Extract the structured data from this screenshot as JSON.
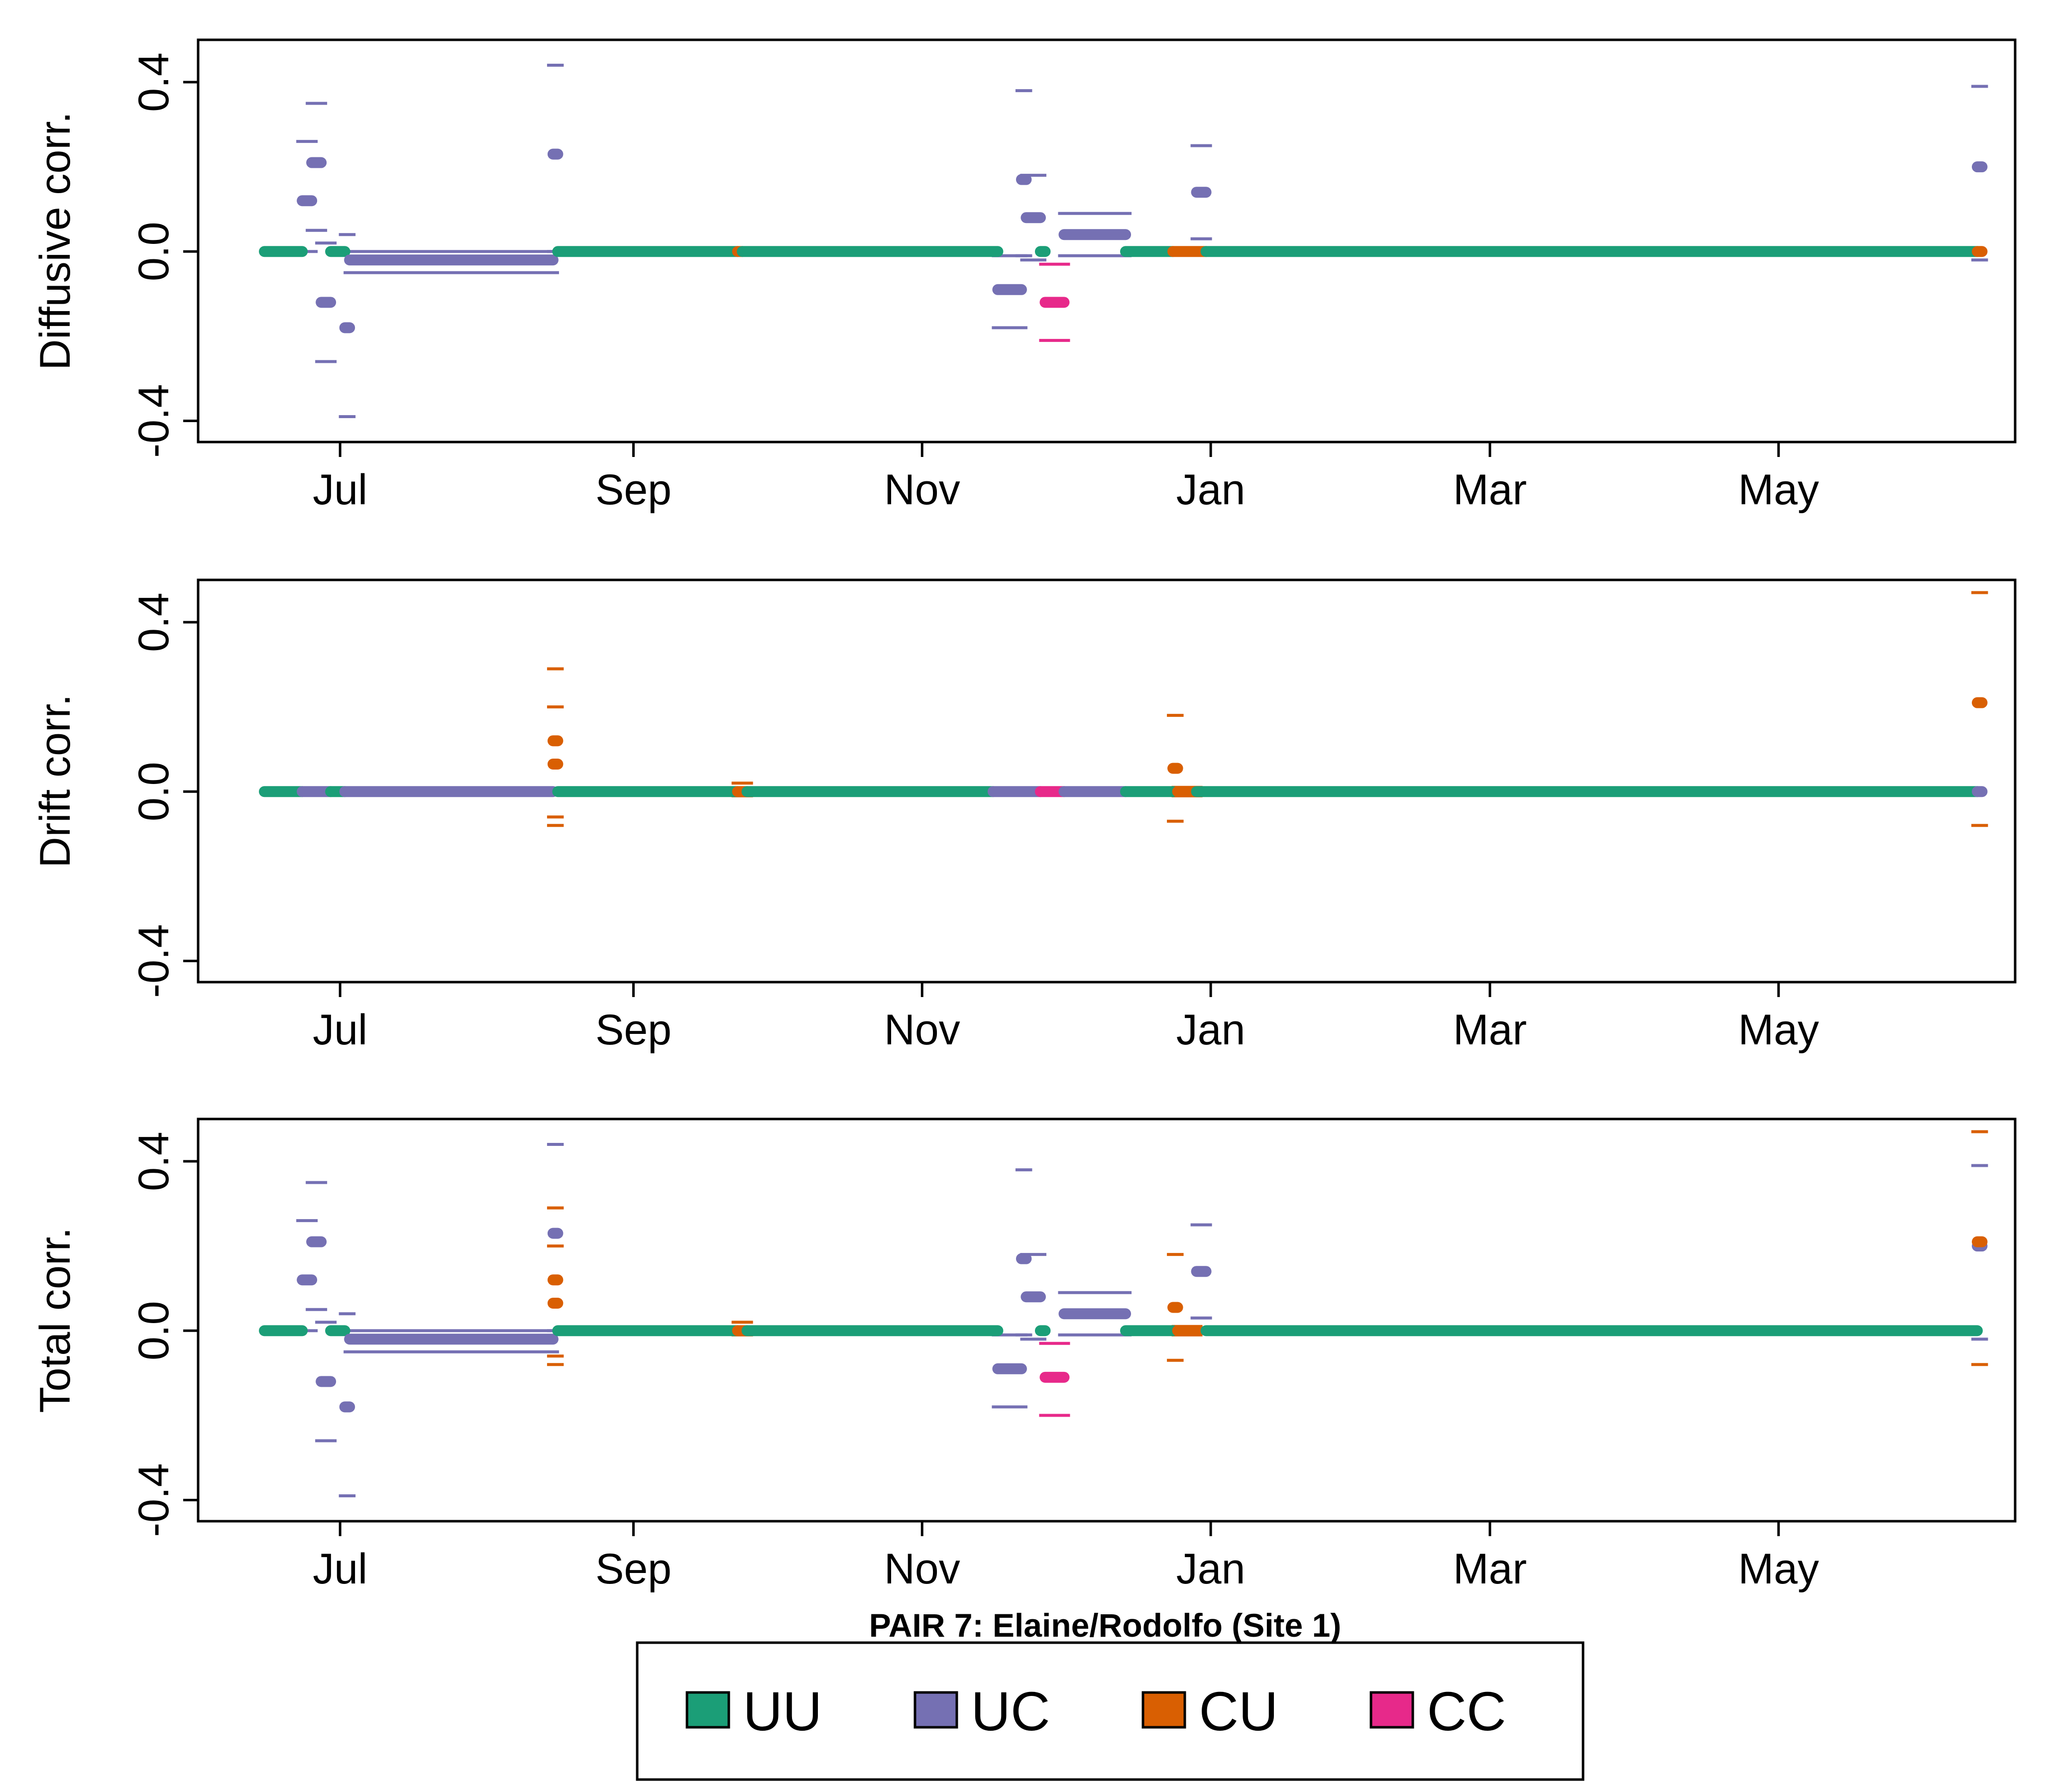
{
  "caption": "PAIR 7: Elaine/Rodolfo (Site 1)",
  "colors": {
    "UU": "#1b9e77",
    "UC": "#7570b3",
    "CU": "#d95f02",
    "CC": "#e7298a"
  },
  "legend": {
    "items": [
      {
        "key": "UU",
        "label": "UU"
      },
      {
        "key": "UC",
        "label": "UC"
      },
      {
        "key": "CU",
        "label": "CU"
      },
      {
        "key": "CC",
        "label": "CC"
      }
    ]
  },
  "chart_data": [
    {
      "type": "scatter",
      "ylabel": "Diffusive corr.",
      "ylim": [
        -0.45,
        0.5
      ],
      "yticks": [
        -0.4,
        0.0,
        0.4
      ],
      "ytick_labels": [
        "-0.4",
        "0.0",
        "0.4"
      ],
      "xlim": [
        "2017-06-01",
        "2018-06-20"
      ],
      "xticks": [
        "2017-07-01",
        "2017-09-01",
        "2017-11-01",
        "2018-01-01",
        "2018-03-01",
        "2018-05-01"
      ],
      "xtick_labels": [
        "Jul",
        "Sep",
        "Nov",
        "Jan",
        "Mar",
        "May"
      ],
      "grid": false,
      "segments": [
        {
          "series": "UU",
          "start": "2017-06-15",
          "end": "2017-06-23",
          "y": 0.0
        },
        {
          "series": "UC",
          "start": "2017-06-23",
          "end": "2017-06-25",
          "y": 0.12,
          "lo": 0.0,
          "hi": 0.26
        },
        {
          "series": "UC",
          "start": "2017-06-25",
          "end": "2017-06-27",
          "y": 0.21,
          "lo": 0.05,
          "hi": 0.35
        },
        {
          "series": "UC",
          "start": "2017-06-27",
          "end": "2017-06-29",
          "y": -0.12,
          "lo": -0.26,
          "hi": 0.02
        },
        {
          "series": "UU",
          "start": "2017-06-29",
          "end": "2017-07-02",
          "y": 0.0
        },
        {
          "series": "UC",
          "start": "2017-07-02",
          "end": "2017-07-03",
          "y": -0.18,
          "lo": -0.39,
          "hi": 0.04
        },
        {
          "series": "UC",
          "start": "2017-07-03",
          "end": "2017-08-15",
          "y": -0.02,
          "lo": -0.05,
          "hi": 0.0
        },
        {
          "series": "UC",
          "start": "2017-08-15",
          "end": "2017-08-16",
          "y": 0.23,
          "lo": 0.0,
          "hi": 0.44
        },
        {
          "series": "UU",
          "start": "2017-08-16",
          "end": "2017-09-23",
          "y": 0.0
        },
        {
          "series": "CU",
          "start": "2017-09-23",
          "end": "2017-09-24",
          "y": 0.0
        },
        {
          "series": "UU",
          "start": "2017-09-24",
          "end": "2017-11-17",
          "y": 0.0
        },
        {
          "series": "UC",
          "start": "2017-11-17",
          "end": "2017-11-22",
          "y": -0.09,
          "lo": -0.18,
          "hi": -0.01
        },
        {
          "series": "UC",
          "start": "2017-11-22",
          "end": "2017-11-23",
          "y": 0.17,
          "lo": -0.01,
          "hi": 0.38
        },
        {
          "series": "UC",
          "start": "2017-11-23",
          "end": "2017-11-26",
          "y": 0.08,
          "lo": -0.02,
          "hi": 0.18
        },
        {
          "series": "UU",
          "start": "2017-11-26",
          "end": "2017-11-27",
          "y": 0.0
        },
        {
          "series": "CC",
          "start": "2017-11-27",
          "end": "2017-12-01",
          "y": -0.12,
          "lo": -0.21,
          "hi": -0.03
        },
        {
          "series": "UC",
          "start": "2017-12-01",
          "end": "2017-12-14",
          "y": 0.04,
          "lo": -0.01,
          "hi": 0.09
        },
        {
          "series": "UU",
          "start": "2017-12-14",
          "end": "2017-12-24",
          "y": 0.0
        },
        {
          "series": "CU",
          "start": "2017-12-24",
          "end": "2017-12-31",
          "y": 0.0
        },
        {
          "series": "UC",
          "start": "2017-12-29",
          "end": "2017-12-31",
          "y": 0.14,
          "lo": 0.03,
          "hi": 0.25
        },
        {
          "series": "UU",
          "start": "2017-12-31",
          "end": "2018-06-12",
          "y": 0.0
        },
        {
          "series": "UC",
          "start": "2018-06-12",
          "end": "2018-06-13",
          "y": 0.2,
          "lo": -0.02,
          "hi": 0.39
        },
        {
          "series": "CU",
          "start": "2018-06-12",
          "end": "2018-06-13",
          "y": 0.0
        }
      ]
    },
    {
      "type": "scatter",
      "ylabel": "Drift corr.",
      "ylim": [
        -0.45,
        0.5
      ],
      "yticks": [
        -0.4,
        0.0,
        0.4
      ],
      "ytick_labels": [
        "-0.4",
        "0.0",
        "0.4"
      ],
      "xlim": [
        "2017-06-01",
        "2018-06-20"
      ],
      "xticks": [
        "2017-07-01",
        "2017-09-01",
        "2017-11-01",
        "2018-01-01",
        "2018-03-01",
        "2018-05-01"
      ],
      "xtick_labels": [
        "Jul",
        "Sep",
        "Nov",
        "Jan",
        "Mar",
        "May"
      ],
      "grid": false,
      "segments": [
        {
          "series": "UU",
          "start": "2017-06-15",
          "end": "2017-06-23",
          "y": 0.0
        },
        {
          "series": "UC",
          "start": "2017-06-23",
          "end": "2017-06-29",
          "y": 0.0
        },
        {
          "series": "UU",
          "start": "2017-06-29",
          "end": "2017-07-02",
          "y": 0.0
        },
        {
          "series": "UC",
          "start": "2017-07-02",
          "end": "2017-08-15",
          "y": 0.0
        },
        {
          "series": "CU",
          "start": "2017-08-15",
          "end": "2017-08-16",
          "y": 0.12,
          "lo": -0.06,
          "hi": 0.29
        },
        {
          "series": "CU",
          "start": "2017-08-15",
          "end": "2017-08-16",
          "y": 0.065,
          "lo": -0.08,
          "hi": 0.2
        },
        {
          "series": "UU",
          "start": "2017-08-16",
          "end": "2017-09-23",
          "y": 0.0
        },
        {
          "series": "CU",
          "start": "2017-09-23",
          "end": "2017-09-25",
          "y": 0.0,
          "lo": -0.01,
          "hi": 0.02
        },
        {
          "series": "UU",
          "start": "2017-09-25",
          "end": "2017-11-16",
          "y": 0.0
        },
        {
          "series": "UC",
          "start": "2017-11-16",
          "end": "2017-11-26",
          "y": 0.0
        },
        {
          "series": "CC",
          "start": "2017-11-26",
          "end": "2017-12-01",
          "y": 0.0
        },
        {
          "series": "UC",
          "start": "2017-12-01",
          "end": "2017-12-14",
          "y": 0.0
        },
        {
          "series": "UU",
          "start": "2017-12-14",
          "end": "2017-12-24",
          "y": 0.0
        },
        {
          "series": "CU",
          "start": "2017-12-24",
          "end": "2017-12-25",
          "y": 0.055,
          "lo": -0.07,
          "hi": 0.18
        },
        {
          "series": "CU",
          "start": "2017-12-25",
          "end": "2017-12-29",
          "y": 0.0,
          "lo": -0.01,
          "hi": 0.01
        },
        {
          "series": "UU",
          "start": "2017-12-29",
          "end": "2018-06-12",
          "y": 0.0
        },
        {
          "series": "UC",
          "start": "2018-06-12",
          "end": "2018-06-13",
          "y": 0.0
        },
        {
          "series": "CU",
          "start": "2018-06-12",
          "end": "2018-06-13",
          "y": 0.21,
          "lo": -0.08,
          "hi": 0.47
        }
      ]
    },
    {
      "type": "scatter",
      "ylabel": "Total corr.",
      "ylim": [
        -0.45,
        0.5
      ],
      "yticks": [
        -0.4,
        0.0,
        0.4
      ],
      "ytick_labels": [
        "-0.4",
        "0.0",
        "0.4"
      ],
      "xlim": [
        "2017-06-01",
        "2018-06-20"
      ],
      "xticks": [
        "2017-07-01",
        "2017-09-01",
        "2017-11-01",
        "2018-01-01",
        "2018-03-01",
        "2018-05-01"
      ],
      "xtick_labels": [
        "Jul",
        "Sep",
        "Nov",
        "Jan",
        "Mar",
        "May"
      ],
      "grid": false,
      "segments": [
        {
          "series": "UU",
          "start": "2017-06-15",
          "end": "2017-06-23",
          "y": 0.0
        },
        {
          "series": "UC",
          "start": "2017-06-23",
          "end": "2017-06-25",
          "y": 0.12,
          "lo": 0.0,
          "hi": 0.26
        },
        {
          "series": "UC",
          "start": "2017-06-25",
          "end": "2017-06-27",
          "y": 0.21,
          "lo": 0.05,
          "hi": 0.35
        },
        {
          "series": "UC",
          "start": "2017-06-27",
          "end": "2017-06-29",
          "y": -0.12,
          "lo": -0.26,
          "hi": 0.02
        },
        {
          "series": "UU",
          "start": "2017-06-29",
          "end": "2017-07-02",
          "y": 0.0
        },
        {
          "series": "UC",
          "start": "2017-07-02",
          "end": "2017-07-03",
          "y": -0.18,
          "lo": -0.39,
          "hi": 0.04
        },
        {
          "series": "UC",
          "start": "2017-07-03",
          "end": "2017-08-15",
          "y": -0.02,
          "lo": -0.05,
          "hi": 0.0
        },
        {
          "series": "UC",
          "start": "2017-08-15",
          "end": "2017-08-16",
          "y": 0.23,
          "lo": 0.0,
          "hi": 0.44
        },
        {
          "series": "CU",
          "start": "2017-08-15",
          "end": "2017-08-16",
          "y": 0.12,
          "lo": -0.06,
          "hi": 0.29
        },
        {
          "series": "CU",
          "start": "2017-08-15",
          "end": "2017-08-16",
          "y": 0.065,
          "lo": -0.08,
          "hi": 0.2
        },
        {
          "series": "UU",
          "start": "2017-08-16",
          "end": "2017-09-23",
          "y": 0.0
        },
        {
          "series": "CU",
          "start": "2017-09-23",
          "end": "2017-09-25",
          "y": 0.0,
          "lo": -0.01,
          "hi": 0.02
        },
        {
          "series": "UU",
          "start": "2017-09-25",
          "end": "2017-11-17",
          "y": 0.0
        },
        {
          "series": "UC",
          "start": "2017-11-17",
          "end": "2017-11-22",
          "y": -0.09,
          "lo": -0.18,
          "hi": -0.01
        },
        {
          "series": "UC",
          "start": "2017-11-22",
          "end": "2017-11-23",
          "y": 0.17,
          "lo": -0.01,
          "hi": 0.38
        },
        {
          "series": "UC",
          "start": "2017-11-23",
          "end": "2017-11-26",
          "y": 0.08,
          "lo": -0.02,
          "hi": 0.18
        },
        {
          "series": "UU",
          "start": "2017-11-26",
          "end": "2017-11-27",
          "y": 0.0
        },
        {
          "series": "CC",
          "start": "2017-11-27",
          "end": "2017-12-01",
          "y": -0.11,
          "lo": -0.2,
          "hi": -0.03
        },
        {
          "series": "UC",
          "start": "2017-12-01",
          "end": "2017-12-14",
          "y": 0.04,
          "lo": -0.01,
          "hi": 0.09
        },
        {
          "series": "UU",
          "start": "2017-12-14",
          "end": "2017-12-24",
          "y": 0.0
        },
        {
          "series": "CU",
          "start": "2017-12-24",
          "end": "2017-12-25",
          "y": 0.055,
          "lo": -0.07,
          "hi": 0.18
        },
        {
          "series": "CU",
          "start": "2017-12-25",
          "end": "2017-12-29",
          "y": 0.0,
          "lo": -0.01,
          "hi": 0.01
        },
        {
          "series": "UC",
          "start": "2017-12-29",
          "end": "2017-12-31",
          "y": 0.14,
          "lo": 0.03,
          "hi": 0.25
        },
        {
          "series": "UU",
          "start": "2017-12-31",
          "end": "2018-06-12",
          "y": 0.0
        },
        {
          "series": "UC",
          "start": "2018-06-12",
          "end": "2018-06-13",
          "y": 0.2,
          "lo": -0.02,
          "hi": 0.39
        },
        {
          "series": "CU",
          "start": "2018-06-12",
          "end": "2018-06-13",
          "y": 0.21,
          "lo": -0.08,
          "hi": 0.47
        }
      ]
    }
  ]
}
